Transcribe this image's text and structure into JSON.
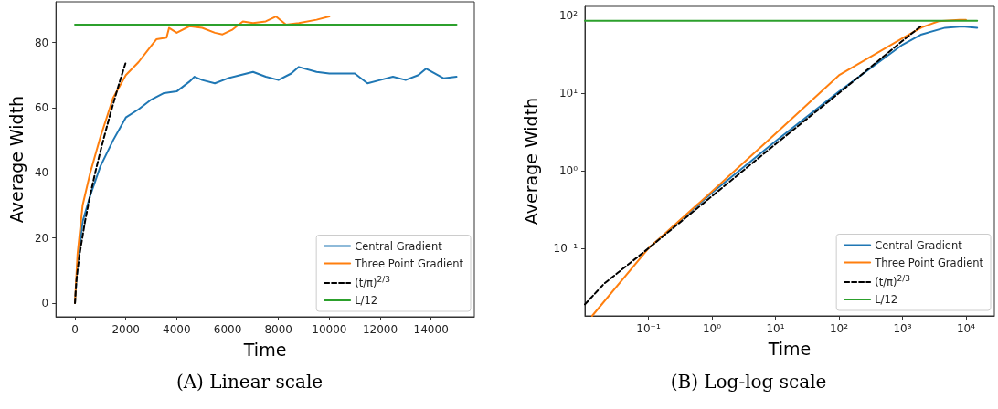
{
  "chart_data": [
    {
      "type": "line",
      "title": "(A) Linear scale",
      "xlabel": "Time",
      "ylabel": "Average Width",
      "xlim": [
        -750,
        15700
      ],
      "ylim": [
        -4.2,
        92.5
      ],
      "xticks": [
        0,
        2000,
        4000,
        6000,
        8000,
        10000,
        12000,
        14000
      ],
      "yticks": [
        0,
        20,
        40,
        60,
        80
      ],
      "grid": false,
      "legend": "bottom right",
      "marker": "none",
      "series": [
        {
          "name": "Central Gradient",
          "color": "#1f77b4",
          "line_style": "solid",
          "x": [
            0,
            100,
            300,
            600,
            1000,
            1500,
            2000,
            2500,
            3000,
            3500,
            4000,
            4500,
            4700,
            5000,
            5500,
            6000,
            6500,
            7000,
            7500,
            8000,
            8500,
            8800,
            9500,
            10000,
            11000,
            11500,
            12000,
            12500,
            13000,
            13500,
            13800,
            14500,
            15000
          ],
          "values": [
            0,
            12,
            25,
            33,
            42,
            50,
            57,
            59.5,
            62.5,
            64.5,
            65,
            68,
            69.5,
            68.5,
            67.5,
            69,
            70,
            71,
            69.5,
            68.5,
            70.5,
            72.5,
            71,
            70.5,
            70.5,
            67.5,
            68.5,
            69.5,
            68.5,
            70,
            72,
            69,
            69.5
          ]
        },
        {
          "name": "Three Point Gradient",
          "color": "#ff7f0e",
          "line_style": "solid",
          "x": [
            0,
            100,
            300,
            600,
            1000,
            1500,
            2000,
            2500,
            3000,
            3200,
            3600,
            3700,
            4000,
            4500,
            5000,
            5500,
            5800,
            6200,
            6600,
            7000,
            7500,
            7900,
            8300,
            8800,
            9500,
            10000
          ],
          "values": [
            0,
            15,
            30,
            40,
            51,
            63,
            70,
            74,
            79,
            81,
            81.5,
            84.5,
            83,
            85,
            84.5,
            83,
            82.5,
            84,
            86.5,
            86,
            86.5,
            88,
            85.5,
            86,
            87,
            88
          ]
        },
        {
          "name": "(t/π)$^{2/3}$",
          "color": "#000000",
          "line_style": "dashed",
          "x": [
            0,
            50,
            100,
            200,
            400,
            600,
            800,
            1000,
            1200,
            1400,
            1600,
            1800,
            2000
          ],
          "values": [
            0,
            6.3,
            10,
            15.9,
            25.3,
            33.2,
            40.2,
            46.6,
            52.6,
            58.4,
            63.8,
            69,
            74
          ]
        },
        {
          "name": "L/12",
          "color": "#2ca02c",
          "line_style": "solid",
          "x": [
            0,
            15000
          ],
          "values": [
            85.5,
            85.5
          ]
        }
      ]
    },
    {
      "type": "line",
      "title": "(B) Log-log scale",
      "xlabel": "Time",
      "ylabel": "Average Width",
      "log": "xy",
      "xlim": [
        0.01,
        28000
      ],
      "ylim": [
        0.0135,
        131
      ],
      "xticks": [
        {
          "value": 0.1,
          "label": "10⁻¹"
        },
        {
          "value": 1,
          "label": "10⁰"
        },
        {
          "value": 10,
          "label": "10¹"
        },
        {
          "value": 100,
          "label": "10²"
        },
        {
          "value": 1000,
          "label": "10³"
        },
        {
          "value": 10000,
          "label": "10⁴"
        }
      ],
      "yticks": [
        {
          "value": 0.1,
          "label": "10⁻¹"
        },
        {
          "value": 1,
          "label": "10⁰"
        },
        {
          "value": 10,
          "label": "10¹"
        },
        {
          "value": 100,
          "label": "10²"
        }
      ],
      "grid": false,
      "legend": "bottom right",
      "marker": "none",
      "series": [
        {
          "name": "Central Gradient",
          "color": "#1f77b4",
          "line_style": "solid",
          "x": [
            0.1,
            1,
            10,
            100,
            1000,
            2000,
            4700,
            8800,
            15000
          ],
          "values": [
            0.1,
            0.52,
            2.4,
            10.5,
            42,
            57,
            69.5,
            72,
            69.5
          ]
        },
        {
          "name": "Three Point Gradient",
          "color": "#ff7f0e",
          "line_style": "solid",
          "x": [
            0.013,
            0.1,
            1,
            10,
            100,
            1000,
            2000,
            3700,
            7900,
            10000
          ],
          "values": [
            0.0135,
            0.1,
            0.54,
            3,
            17,
            51,
            70,
            84.5,
            88,
            88
          ]
        },
        {
          "name": "(t/π)$^{2/3}$",
          "color": "#000000",
          "line_style": "dashed",
          "x": [
            0.01,
            0.02,
            0.1,
            1,
            10,
            100,
            1000,
            2000
          ],
          "values": [
            0.019,
            0.035,
            0.1,
            0.47,
            2.2,
            10,
            47,
            74
          ]
        },
        {
          "name": "L/12",
          "color": "#2ca02c",
          "line_style": "solid",
          "x": [
            0.01,
            15000
          ],
          "values": [
            85.5,
            85.5
          ]
        }
      ]
    }
  ]
}
